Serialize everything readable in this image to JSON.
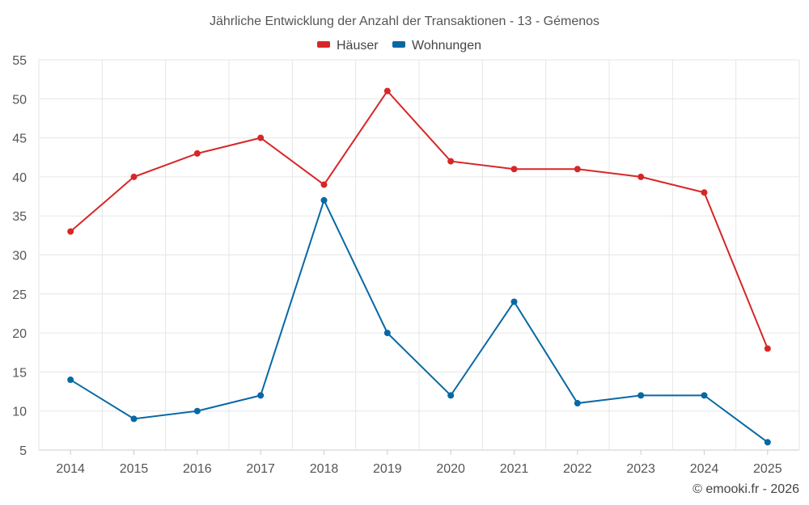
{
  "chart_data": {
    "type": "line",
    "title": "Jährliche Entwicklung der Anzahl der Transaktionen - 13 - Gémenos",
    "categories": [
      "2014",
      "2015",
      "2016",
      "2017",
      "2018",
      "2019",
      "2020",
      "2021",
      "2022",
      "2023",
      "2024",
      "2025"
    ],
    "ylim": [
      5,
      55
    ],
    "yticks": [
      5,
      10,
      15,
      20,
      25,
      30,
      35,
      40,
      45,
      50,
      55
    ],
    "xlabel": "",
    "ylabel": "",
    "grid": true,
    "legend_position": "top-center",
    "series": [
      {
        "name": "Häuser",
        "color": "#d62728",
        "values": [
          33,
          40,
          43,
          45,
          39,
          51,
          42,
          41,
          41,
          40,
          38,
          18
        ]
      },
      {
        "name": "Wohnungen",
        "color": "#0868a4",
        "values": [
          14,
          9,
          10,
          12,
          37,
          20,
          12,
          24,
          11,
          12,
          12,
          6
        ]
      }
    ],
    "credit": "© emooki.fr - 2026"
  }
}
